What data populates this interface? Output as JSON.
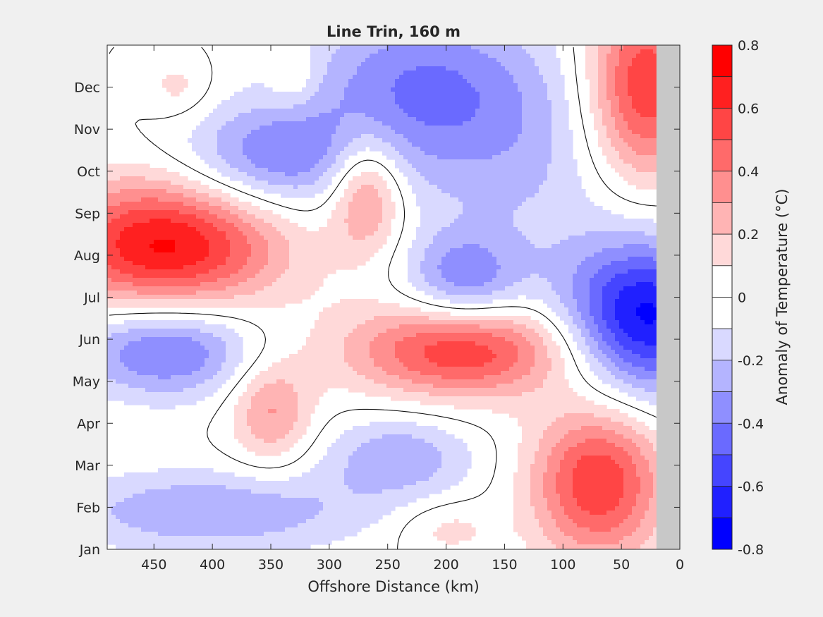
{
  "chart_data": {
    "type": "heatmap",
    "title": "Line Trin, 160 m",
    "xlabel": "Offshore Distance (km)",
    "ylabel": "",
    "xlim": [
      490,
      0
    ],
    "x_reversed": true,
    "x_ticks": [
      450,
      400,
      350,
      300,
      250,
      200,
      150,
      100,
      50,
      0
    ],
    "x_tick_labels": [
      "450",
      "400",
      "350",
      "300",
      "250",
      "200",
      "150",
      "100",
      "50",
      "0"
    ],
    "y_tick_labels": [
      "Jan",
      "Feb",
      "Mar",
      "Apr",
      "May",
      "Jun",
      "Jul",
      "Aug",
      "Sep",
      "Oct",
      "Nov",
      "Dec"
    ],
    "ylim": [
      0,
      12
    ],
    "masked_region_x": [
      0,
      20
    ],
    "colorbar": {
      "label": "Anomaly of Temperature (°C)",
      "range": [
        -0.8,
        0.8
      ],
      "tick_values": [
        0.8,
        0.6,
        0.4,
        0.2,
        0,
        -0.2,
        -0.4,
        -0.6,
        -0.8
      ],
      "tick_labels": [
        "0.8",
        "0.6",
        "0.4",
        "0.2",
        "0",
        "-0.2",
        "-0.4",
        "-0.6",
        "-0.8"
      ],
      "levels": [
        {
          "lo": 0.7,
          "hi": 0.8,
          "color": "#ff0000"
        },
        {
          "lo": 0.6,
          "hi": 0.7,
          "color": "#ff2020"
        },
        {
          "lo": 0.5,
          "hi": 0.6,
          "color": "#ff4545"
        },
        {
          "lo": 0.4,
          "hi": 0.5,
          "color": "#ff6a6a"
        },
        {
          "lo": 0.3,
          "hi": 0.4,
          "color": "#ff8f8f"
        },
        {
          "lo": 0.2,
          "hi": 0.3,
          "color": "#ffb4b4"
        },
        {
          "lo": 0.1,
          "hi": 0.2,
          "color": "#ffd9d9"
        },
        {
          "lo": 0.0,
          "hi": 0.1,
          "color": "#ffffff"
        },
        {
          "lo": -0.1,
          "hi": 0.0,
          "color": "#ffffff"
        },
        {
          "lo": -0.2,
          "hi": -0.1,
          "color": "#d9d9ff"
        },
        {
          "lo": -0.3,
          "hi": -0.2,
          "color": "#b4b4ff"
        },
        {
          "lo": -0.4,
          "hi": -0.3,
          "color": "#8f8fff"
        },
        {
          "lo": -0.5,
          "hi": -0.4,
          "color": "#6a6aff"
        },
        {
          "lo": -0.6,
          "hi": -0.5,
          "color": "#4545ff"
        },
        {
          "lo": -0.7,
          "hi": -0.6,
          "color": "#2020ff"
        },
        {
          "lo": -0.8,
          "hi": -0.7,
          "color": "#0000ff"
        }
      ]
    },
    "anomaly_features": [
      {
        "x": 440,
        "y": 7.25,
        "sx": 70,
        "sy": 1.1,
        "amp": 0.72
      },
      {
        "x": 268,
        "y": 8.5,
        "sx": 22,
        "sy": 1.0,
        "amp": 0.4
      },
      {
        "x": 185,
        "y": 4.75,
        "sx": 70,
        "sy": 0.8,
        "amp": 0.6
      },
      {
        "x": 70,
        "y": 1.6,
        "sx": 40,
        "sy": 1.3,
        "amp": 0.6
      },
      {
        "x": 30,
        "y": 11.0,
        "sx": 35,
        "sy": 1.6,
        "amp": 0.62
      },
      {
        "x": 30,
        "y": 5.5,
        "sx": 50,
        "sy": 1.3,
        "amp": -0.74
      },
      {
        "x": 440,
        "y": 4.75,
        "sx": 55,
        "sy": 0.8,
        "amp": -0.44
      },
      {
        "x": 350,
        "y": 9.3,
        "sx": 55,
        "sy": 0.9,
        "amp": -0.38
      },
      {
        "x": 230,
        "y": 11.0,
        "sx": 70,
        "sy": 1.4,
        "amp": -0.36
      },
      {
        "x": 185,
        "y": 6.4,
        "sx": 35,
        "sy": 0.8,
        "amp": -0.36
      },
      {
        "x": 400,
        "y": 0.9,
        "sx": 95,
        "sy": 0.7,
        "amp": -0.3
      },
      {
        "x": 240,
        "y": 2.2,
        "sx": 45,
        "sy": 0.7,
        "amp": -0.28
      },
      {
        "x": 350,
        "y": 3.3,
        "sx": 25,
        "sy": 0.9,
        "amp": 0.32
      },
      {
        "x": 200,
        "y": 0.5,
        "sx": 30,
        "sy": 0.5,
        "amp": 0.15
      },
      {
        "x": 140,
        "y": 9.5,
        "sx": 70,
        "sy": 2.0,
        "amp": -0.2
      },
      {
        "x": 430,
        "y": 11.0,
        "sx": 20,
        "sy": 0.5,
        "amp": 0.14
      },
      {
        "x": 330,
        "y": 11.3,
        "sx": 15,
        "sy": 0.6,
        "amp": 0.14
      }
    ]
  }
}
